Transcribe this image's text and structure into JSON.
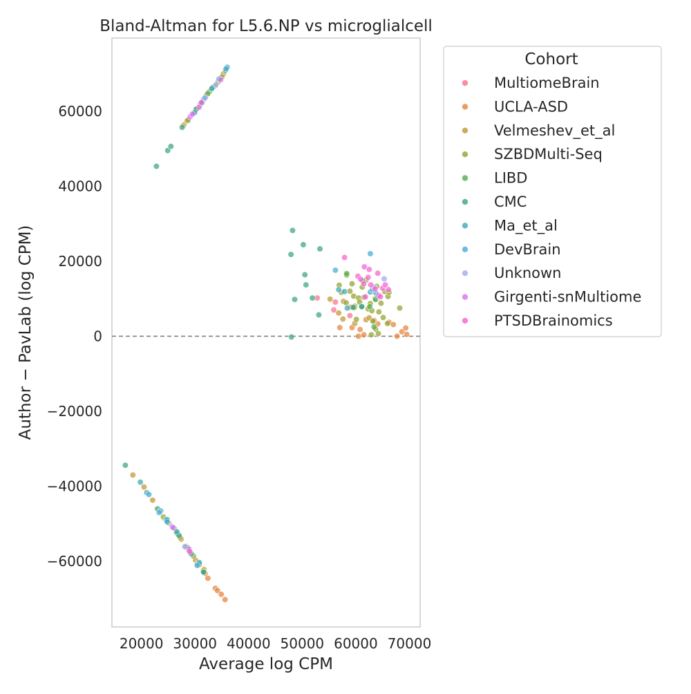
{
  "chart_data": {
    "type": "scatter",
    "title": "Bland-Altman for L5.6.NP vs microglialcell",
    "xlabel": "Average log CPM",
    "ylabel": "Author − PavLab (log CPM)",
    "xlim": [
      14500,
      72000
    ],
    "ylim": [
      -77500,
      79500
    ],
    "xticks": [
      20000,
      30000,
      40000,
      50000,
      60000,
      70000
    ],
    "yticks": [
      -60000,
      -40000,
      -20000,
      0,
      20000,
      40000,
      60000
    ],
    "xtick_labels": [
      "20000",
      "30000",
      "40000",
      "50000",
      "60000",
      "70000"
    ],
    "ytick_labels": [
      "−60000",
      "−40000",
      "−20000",
      "0",
      "20000",
      "40000",
      "60000"
    ],
    "reference_line": {
      "y": 0,
      "style": "dashed",
      "color": "#808080"
    },
    "grid": false,
    "legend": {
      "title": "Cohort",
      "placement": "outside-right"
    },
    "series": [
      {
        "name": "MultiomeBrain",
        "color": "#f77189",
        "points": [
          [
            52800,
            10200
          ],
          [
            55900,
            7000
          ],
          [
            56200,
            9100
          ],
          [
            58900,
            5500
          ]
        ]
      },
      {
        "name": "UCLA-ASD",
        "color": "#e5833a",
        "points": [
          [
            57000,
            2300
          ],
          [
            59300,
            2300
          ],
          [
            60500,
            0
          ],
          [
            60800,
            1800
          ],
          [
            61500,
            400
          ],
          [
            64100,
            3300
          ],
          [
            66200,
            3700
          ],
          [
            67000,
            3100
          ],
          [
            67700,
            0
          ],
          [
            68600,
            1200
          ],
          [
            69300,
            2200
          ],
          [
            69500,
            500
          ],
          [
            33800,
            -67200
          ],
          [
            34200,
            -67800
          ],
          [
            34900,
            -68800
          ],
          [
            35600,
            -70200
          ],
          [
            32400,
            -64500
          ],
          [
            31900,
            -63200
          ],
          [
            31500,
            -62600
          ],
          [
            30700,
            -61000
          ]
        ]
      },
      {
        "name": "Velmeshev_et_al",
        "color": "#c39532",
        "points": [
          [
            55200,
            9900
          ],
          [
            56800,
            6200
          ],
          [
            57700,
            9300
          ],
          [
            57600,
            4600
          ],
          [
            59000,
            7700
          ],
          [
            59800,
            3400
          ],
          [
            61900,
            4400
          ],
          [
            62500,
            4900
          ],
          [
            63400,
            4200
          ],
          [
            18400,
            -37000
          ],
          [
            20500,
            -40200
          ],
          [
            22100,
            -43700
          ],
          [
            25100,
            -49800
          ],
          [
            26500,
            -52300
          ],
          [
            27400,
            -54100
          ],
          [
            28300,
            -56000
          ],
          [
            29200,
            -57700
          ],
          [
            30100,
            -59700
          ],
          [
            31700,
            -62200
          ],
          [
            27900,
            56300
          ],
          [
            28500,
            57400
          ],
          [
            30400,
            60700
          ],
          [
            32100,
            64200
          ],
          [
            33700,
            66700
          ],
          [
            35300,
            69900
          ]
        ]
      },
      {
        "name": "SZBDMulti-Seq",
        "color": "#94a131",
        "points": [
          [
            56900,
            13600
          ],
          [
            57300,
            11700
          ],
          [
            58200,
            8900
          ],
          [
            58900,
            12000
          ],
          [
            59300,
            14000
          ],
          [
            59600,
            10700
          ],
          [
            59800,
            8000
          ],
          [
            60500,
            10200
          ],
          [
            60700,
            9100
          ],
          [
            61200,
            13100
          ],
          [
            61500,
            10400
          ],
          [
            61900,
            15000
          ],
          [
            62300,
            7300
          ],
          [
            62700,
            8700
          ],
          [
            63000,
            6800
          ],
          [
            63200,
            4000
          ],
          [
            63600,
            10000
          ],
          [
            63900,
            13300
          ],
          [
            64300,
            6500
          ],
          [
            64700,
            8800
          ],
          [
            65100,
            5000
          ],
          [
            65400,
            11900
          ],
          [
            66000,
            10600
          ],
          [
            66200,
            11700
          ],
          [
            68200,
            7500
          ],
          [
            60100,
            4500
          ],
          [
            59700,
            7600
          ],
          [
            58300,
            16300
          ],
          [
            62900,
            400
          ],
          [
            63700,
            1900
          ],
          [
            64200,
            700
          ],
          [
            65900,
            3400
          ],
          [
            24100,
            -48200
          ],
          [
            26100,
            -51200
          ],
          [
            27200,
            -53600
          ],
          [
            28800,
            -57000
          ],
          [
            29700,
            -58600
          ],
          [
            30500,
            -60600
          ],
          [
            28700,
            57600
          ],
          [
            29700,
            59500
          ],
          [
            31000,
            61900
          ],
          [
            32700,
            65200
          ],
          [
            34300,
            67800
          ],
          [
            35000,
            69100
          ]
        ]
      },
      {
        "name": "LIBD",
        "color": "#51ac4e",
        "points": [
          [
            58300,
            16700
          ],
          [
            61100,
            7800
          ],
          [
            61300,
            14700
          ],
          [
            62600,
            7900
          ],
          [
            63700,
            9800
          ],
          [
            63400,
            2500
          ],
          [
            24500,
            -48900
          ],
          [
            26700,
            -52600
          ],
          [
            30800,
            -60800
          ],
          [
            31700,
            -62800
          ],
          [
            29800,
            59600
          ],
          [
            31600,
            63000
          ],
          [
            32400,
            64700
          ]
        ]
      },
      {
        "name": "CMC",
        "color": "#3ba287",
        "points": [
          [
            48200,
            28200
          ],
          [
            50200,
            24400
          ],
          [
            53300,
            23300
          ],
          [
            47900,
            21800
          ],
          [
            50500,
            16400
          ],
          [
            50700,
            13700
          ],
          [
            51900,
            10200
          ],
          [
            48600,
            9800
          ],
          [
            53100,
            5700
          ],
          [
            48000,
            -200
          ],
          [
            59500,
            7700
          ],
          [
            61100,
            7900
          ],
          [
            17000,
            -34400
          ],
          [
            23000,
            -46000
          ],
          [
            24700,
            -49100
          ],
          [
            27000,
            -53100
          ],
          [
            28600,
            -56400
          ],
          [
            31600,
            -62900
          ],
          [
            22800,
            45300
          ],
          [
            24900,
            49500
          ],
          [
            25500,
            50600
          ],
          [
            27600,
            55700
          ],
          [
            30200,
            60500
          ],
          [
            33300,
            66300
          ],
          [
            35700,
            70900
          ]
        ]
      },
      {
        "name": "Ma_et_al",
        "color": "#41a8b9",
        "points": [
          [
            56800,
            12400
          ],
          [
            57900,
            11900
          ],
          [
            58400,
            7500
          ],
          [
            62700,
            11800
          ],
          [
            64100,
            10700
          ],
          [
            19800,
            -38900
          ],
          [
            21000,
            -41700
          ],
          [
            23600,
            -46600
          ],
          [
            24800,
            -48900
          ],
          [
            26600,
            -52100
          ],
          [
            29300,
            -58000
          ],
          [
            30800,
            -60300
          ],
          [
            36000,
            71700
          ],
          [
            34500,
            68600
          ],
          [
            33100,
            66000
          ],
          [
            31300,
            62200
          ],
          [
            29900,
            59600
          ]
        ]
      },
      {
        "name": "DevBrain",
        "color": "#4aabd4",
        "points": [
          [
            56200,
            17600
          ],
          [
            62700,
            22000
          ],
          [
            63100,
            12500
          ],
          [
            63700,
            11600
          ],
          [
            21400,
            -42200
          ],
          [
            23300,
            -47000
          ],
          [
            24800,
            -49500
          ],
          [
            30400,
            -61100
          ],
          [
            35800,
            71300
          ],
          [
            31700,
            63400
          ]
        ]
      },
      {
        "name": "Unknown",
        "color": "#a1a9f4",
        "points": [
          [
            65300,
            15300
          ],
          [
            63400,
            13100
          ],
          [
            28100,
            -56100
          ],
          [
            25700,
            -50700
          ],
          [
            31900,
            63600
          ],
          [
            33900,
            67000
          ]
        ]
      },
      {
        "name": "Girgenti-snMultiome",
        "color": "#da70f4",
        "points": [
          [
            29100,
            58500
          ],
          [
            29500,
            59200
          ],
          [
            30800,
            61100
          ],
          [
            34800,
            68400
          ],
          [
            28900,
            -56800
          ],
          [
            25900,
            -51000
          ]
        ]
      },
      {
        "name": "PTSDBrainomics",
        "color": "#f562d1",
        "points": [
          [
            57900,
            21000
          ],
          [
            60400,
            16000
          ],
          [
            61600,
            18500
          ],
          [
            62500,
            17800
          ],
          [
            64100,
            16800
          ],
          [
            61500,
            14000
          ],
          [
            62800,
            13700
          ],
          [
            63600,
            12600
          ],
          [
            65000,
            12800
          ],
          [
            65500,
            13700
          ],
          [
            66100,
            12400
          ],
          [
            64300,
            10900
          ],
          [
            64600,
            10500
          ],
          [
            62300,
            15700
          ],
          [
            60900,
            15200
          ],
          [
            61800,
            10500
          ],
          [
            29000,
            -57400
          ],
          [
            31200,
            62300
          ]
        ]
      }
    ]
  }
}
